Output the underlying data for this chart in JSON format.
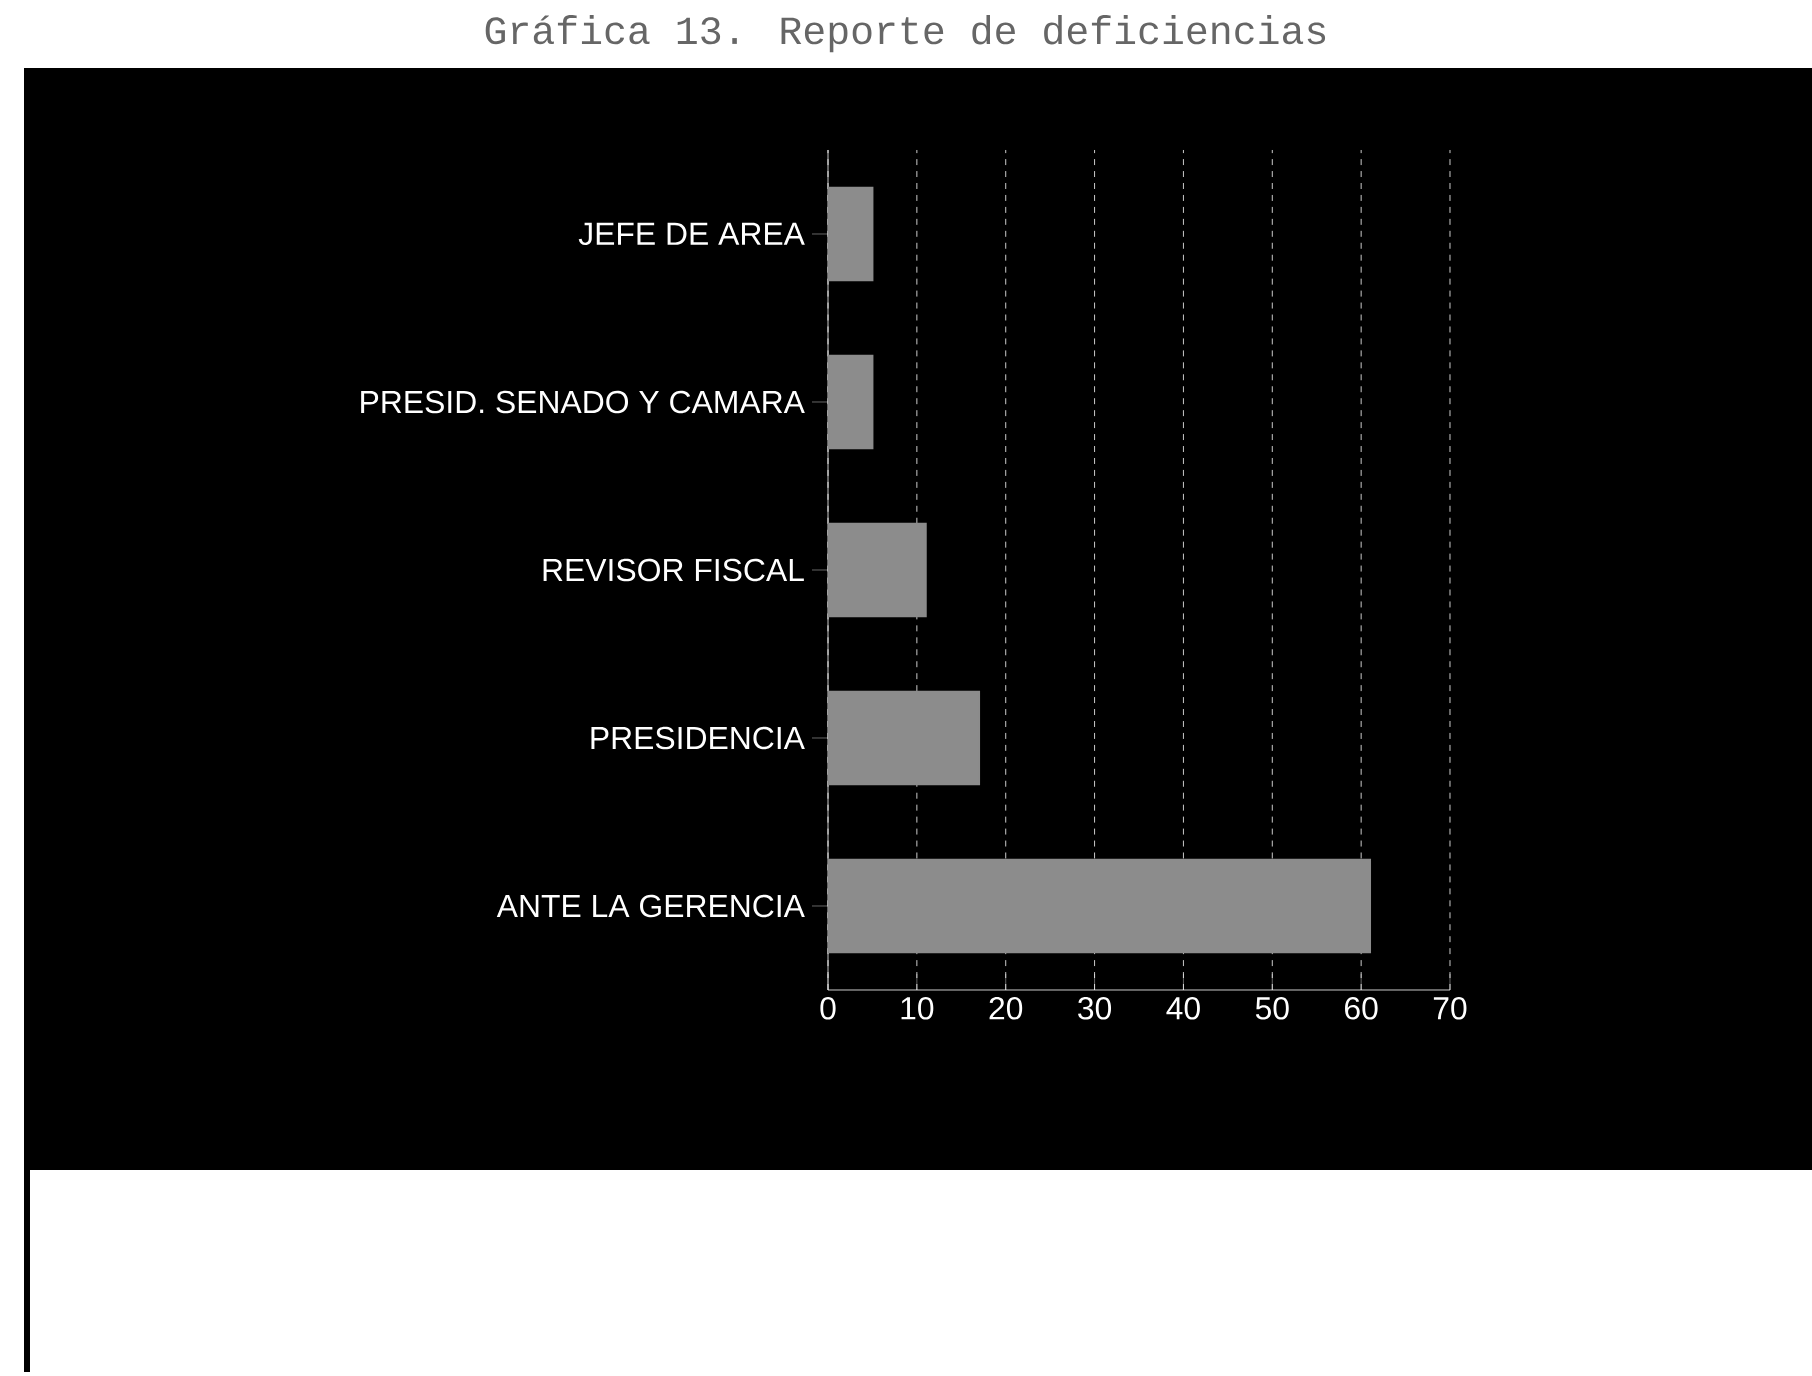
{
  "chart_data": {
    "type": "bar",
    "orientation": "horizontal",
    "title": "Gráfica 13. Reporte de deficiencias",
    "categories": [
      "JEFE DE AREA",
      "PRESID. SENADO Y CAMARA",
      "REVISOR FISCAL",
      "PRESIDENCIA",
      "ANTE LA GERENCIA"
    ],
    "values": [
      5,
      5,
      11,
      17,
      61
    ],
    "color": "#8c8c8c",
    "xlim": [
      0,
      70
    ],
    "xticks": [
      0,
      10,
      20,
      30,
      40,
      50,
      60,
      70
    ],
    "grid": "x"
  }
}
